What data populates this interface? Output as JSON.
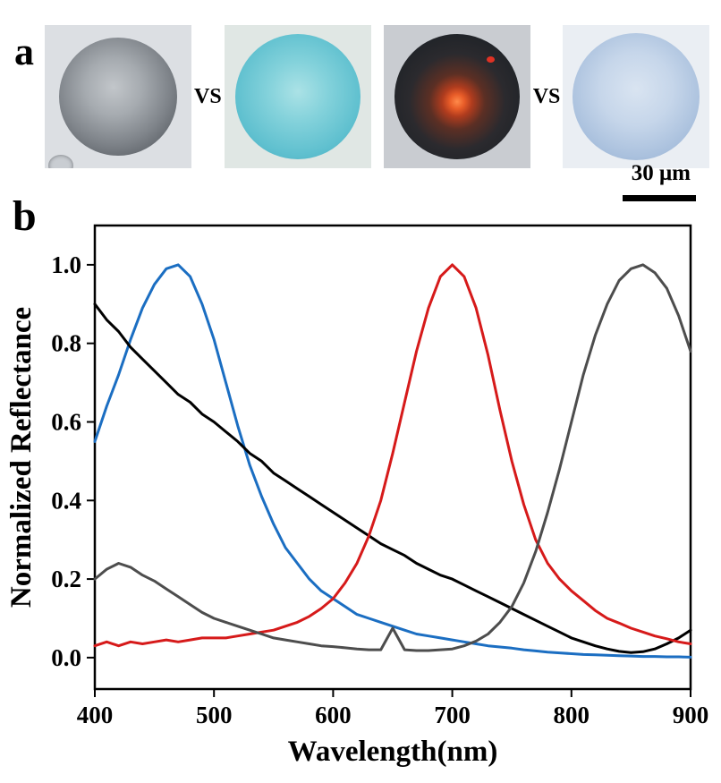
{
  "figure": {
    "panel_a_label": "a",
    "panel_b_label": "b"
  },
  "panel_a": {
    "vs_labels": [
      "VS",
      "VS"
    ],
    "scale_bar": {
      "text": "30 μm",
      "bar_color": "#000000"
    },
    "images": [
      {
        "name": "gray-microsphere",
        "bg": "#dcdfe3",
        "center": "46% 42%",
        "sphere_d": 132,
        "stops": [
          "#c2c6ca 0%",
          "#a6abb0 30%",
          "#7f848a 60%",
          "#565b61 88%",
          "#6a6f75 100%"
        ],
        "blob": "#c9cdd2"
      },
      {
        "name": "cyan-microsphere",
        "bg": "#e0e7e4",
        "center": "50% 46%",
        "sphere_d": 140,
        "stops": [
          "#abe2e6 0%",
          "#84d2db 32%",
          "#5fc0cf 68%",
          "#45aabf 94%",
          "#3fa0b4 100%"
        ]
      },
      {
        "name": "dark-microsphere-orange-core",
        "bg": "#c9ccd1",
        "center": "50% 54%",
        "sphere_d": 140,
        "stops": [
          "#ff8a4a 0%",
          "#e85c28 8%",
          "#b03c1e 16%",
          "#5c2f24 30%",
          "#2b2a2e 52%",
          "#1f2328 78%",
          "#2c3036 100%"
        ],
        "speck": "#e03224"
      },
      {
        "name": "light-blue-microsphere",
        "bg": "#eaeef3",
        "center": "50% 44%",
        "sphere_d": 142,
        "stops": [
          "#d9e4f1 0%",
          "#c6d6ea 38%",
          "#a9c0dd 72%",
          "#90a9c9 96%",
          "#8aa3c2 100%"
        ]
      }
    ]
  },
  "chart_data": {
    "type": "line",
    "title": "",
    "xlabel": "Wavelength(nm)",
    "ylabel": "Normalized Reflectance",
    "xlim": [
      400,
      900
    ],
    "ylim": [
      0.0,
      1.0
    ],
    "xticks": [
      400,
      500,
      600,
      700,
      800,
      900
    ],
    "yticks": [
      0.0,
      0.2,
      0.4,
      0.6,
      0.8,
      1.0
    ],
    "grid": false,
    "legend": "none",
    "frame_color": "#000000",
    "x": [
      400,
      410,
      420,
      430,
      440,
      450,
      460,
      470,
      480,
      490,
      500,
      510,
      520,
      530,
      540,
      550,
      560,
      570,
      580,
      590,
      600,
      610,
      620,
      630,
      640,
      650,
      660,
      670,
      680,
      690,
      700,
      710,
      720,
      730,
      740,
      750,
      760,
      770,
      780,
      790,
      800,
      810,
      820,
      830,
      840,
      850,
      860,
      870,
      880,
      890,
      900
    ],
    "series": [
      {
        "name": "blue-spectrum-peak-470nm",
        "color": "#1b6ec2",
        "values": [
          0.55,
          0.64,
          0.72,
          0.81,
          0.89,
          0.95,
          0.99,
          1.0,
          0.97,
          0.9,
          0.81,
          0.7,
          0.59,
          0.49,
          0.41,
          0.34,
          0.28,
          0.24,
          0.2,
          0.17,
          0.15,
          0.13,
          0.11,
          0.1,
          0.09,
          0.08,
          0.07,
          0.06,
          0.055,
          0.05,
          0.045,
          0.04,
          0.035,
          0.03,
          0.027,
          0.024,
          0.02,
          0.017,
          0.014,
          0.012,
          0.01,
          0.008,
          0.007,
          0.006,
          0.005,
          0.004,
          0.003,
          0.003,
          0.002,
          0.002,
          0.001
        ]
      },
      {
        "name": "black-spectrum-broadband-decay",
        "color": "#000000",
        "values": [
          0.9,
          0.86,
          0.83,
          0.79,
          0.76,
          0.73,
          0.7,
          0.67,
          0.65,
          0.62,
          0.6,
          0.575,
          0.55,
          0.52,
          0.5,
          0.47,
          0.45,
          0.43,
          0.41,
          0.39,
          0.37,
          0.35,
          0.33,
          0.31,
          0.29,
          0.275,
          0.26,
          0.24,
          0.225,
          0.21,
          0.2,
          0.185,
          0.17,
          0.155,
          0.14,
          0.125,
          0.11,
          0.095,
          0.08,
          0.065,
          0.05,
          0.04,
          0.03,
          0.022,
          0.016,
          0.013,
          0.015,
          0.022,
          0.035,
          0.05,
          0.07
        ]
      },
      {
        "name": "red-spectrum-peak-700nm",
        "color": "#d61a1a",
        "values": [
          0.03,
          0.04,
          0.03,
          0.04,
          0.035,
          0.04,
          0.045,
          0.04,
          0.045,
          0.05,
          0.05,
          0.05,
          0.055,
          0.06,
          0.065,
          0.07,
          0.08,
          0.09,
          0.105,
          0.125,
          0.15,
          0.19,
          0.24,
          0.31,
          0.4,
          0.52,
          0.65,
          0.78,
          0.89,
          0.97,
          1.0,
          0.97,
          0.89,
          0.77,
          0.63,
          0.5,
          0.39,
          0.3,
          0.24,
          0.2,
          0.17,
          0.145,
          0.12,
          0.1,
          0.088,
          0.075,
          0.065,
          0.055,
          0.048,
          0.04,
          0.035
        ]
      },
      {
        "name": "dark-gray-spectrum-peak-860nm",
        "color": "#4d4d4d",
        "values": [
          0.2,
          0.225,
          0.24,
          0.23,
          0.21,
          0.195,
          0.175,
          0.155,
          0.135,
          0.115,
          0.1,
          0.09,
          0.08,
          0.07,
          0.06,
          0.05,
          0.045,
          0.04,
          0.035,
          0.03,
          0.028,
          0.025,
          0.022,
          0.02,
          0.02,
          0.075,
          0.02,
          0.018,
          0.018,
          0.02,
          0.022,
          0.03,
          0.042,
          0.06,
          0.09,
          0.13,
          0.19,
          0.27,
          0.37,
          0.48,
          0.6,
          0.72,
          0.82,
          0.9,
          0.96,
          0.99,
          1.0,
          0.98,
          0.94,
          0.87,
          0.78
        ]
      }
    ]
  }
}
